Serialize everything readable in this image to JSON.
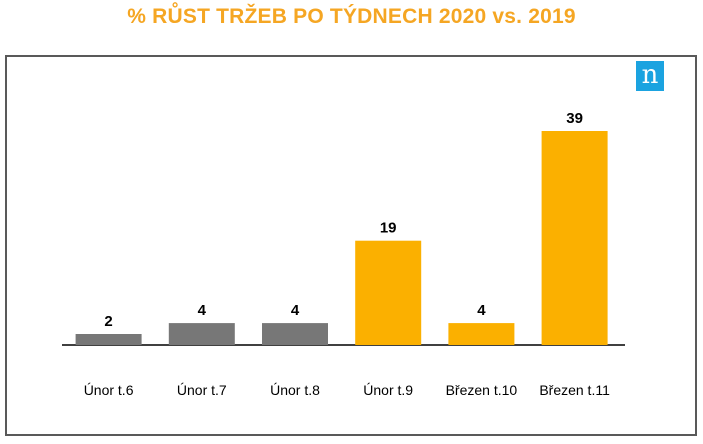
{
  "title": "% RŮST TRŽEB PO TÝDNECH 2020 vs. 2019",
  "logo_text": "n",
  "colors": {
    "title": "#f5a623",
    "bar_gray": "#777777",
    "bar_orange": "#fbb000",
    "logo_bg": "#1ba3e0",
    "frame": "#595959"
  },
  "chart_data": {
    "type": "bar",
    "categories": [
      "Únor t.6",
      "Únor t.7",
      "Únor t.8",
      "Únor t.9",
      "Březen t.10",
      "Březen t.11"
    ],
    "values": [
      2,
      4,
      4,
      19,
      4,
      39
    ],
    "bar_colors": [
      "#777777",
      "#777777",
      "#777777",
      "#fbb000",
      "#fbb000",
      "#fbb000"
    ],
    "data_labels": [
      "2",
      "4",
      "4",
      "19",
      "4",
      "39"
    ],
    "title": "% RŮST TRŽEB PO TÝDNECH 2020 vs. 2019",
    "xlabel": "",
    "ylabel": "",
    "ylim": [
      0,
      40
    ],
    "grid": false,
    "legend": "none"
  }
}
